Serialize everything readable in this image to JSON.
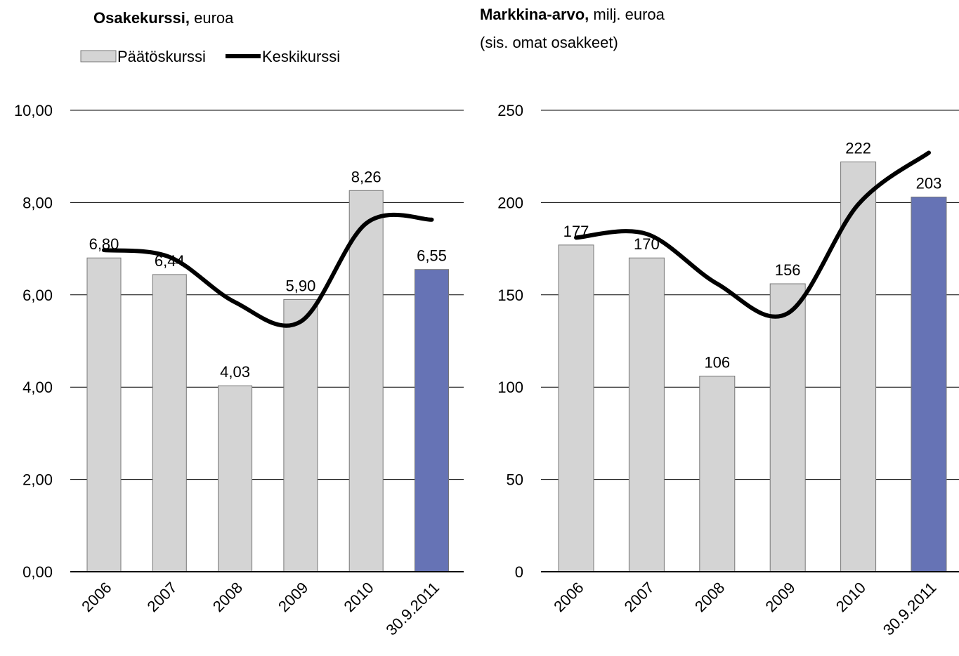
{
  "chart_data": [
    {
      "type": "bar",
      "title": "Osakekurssi,",
      "subtitle": [
        "euroa"
      ],
      "categories": [
        "2006",
        "2007",
        "2008",
        "2009",
        "2010",
        "30.9.2011"
      ],
      "legend": true,
      "series": [
        {
          "name": "Päätöskurssi",
          "type": "bar",
          "color": "#d4d4d4",
          "colors": [
            "#d4d4d4",
            "#d4d4d4",
            "#d4d4d4",
            "#d4d4d4",
            "#d4d4d4",
            "#6673b5"
          ],
          "values": [
            6.8,
            6.44,
            4.03,
            5.9,
            8.26,
            6.55
          ],
          "value_labels": [
            "6,80",
            "6,44",
            "4,03",
            "5,90",
            "8,26",
            "6,55"
          ]
        },
        {
          "name": "Keskikurssi",
          "type": "line",
          "color": "#000000",
          "values": [
            6.97,
            6.82,
            5.84,
            5.42,
            7.55,
            7.63
          ]
        }
      ],
      "ylim": [
        0,
        10
      ],
      "yticks": [
        {
          "value": 0,
          "label": "0,00"
        },
        {
          "value": 2,
          "label": "2,00"
        },
        {
          "value": 4,
          "label": "4,00"
        },
        {
          "value": 6,
          "label": "6,00"
        },
        {
          "value": 8,
          "label": "8,00"
        },
        {
          "value": 10,
          "label": "10,00"
        }
      ],
      "grid": true
    },
    {
      "type": "bar",
      "title": "Markkina-arvo,",
      "subtitle": [
        "milj. euroa",
        "(sis. omat osakkeet)"
      ],
      "categories": [
        "2006",
        "2007",
        "2008",
        "2009",
        "2010",
        "30.9.2011"
      ],
      "legend": false,
      "series": [
        {
          "type": "bar",
          "color": "#d4d4d4",
          "colors": [
            "#d4d4d4",
            "#d4d4d4",
            "#d4d4d4",
            "#d4d4d4",
            "#d4d4d4",
            "#6673b5"
          ],
          "values": [
            177,
            170,
            106,
            156,
            222,
            203
          ]
        },
        {
          "type": "line",
          "color": "#000000",
          "values": [
            181,
            183,
            156,
            140,
            199,
            227
          ]
        }
      ],
      "ylim": [
        0,
        250
      ],
      "yticks": [
        0,
        50,
        100,
        150,
        200,
        250
      ],
      "grid": true
    }
  ]
}
